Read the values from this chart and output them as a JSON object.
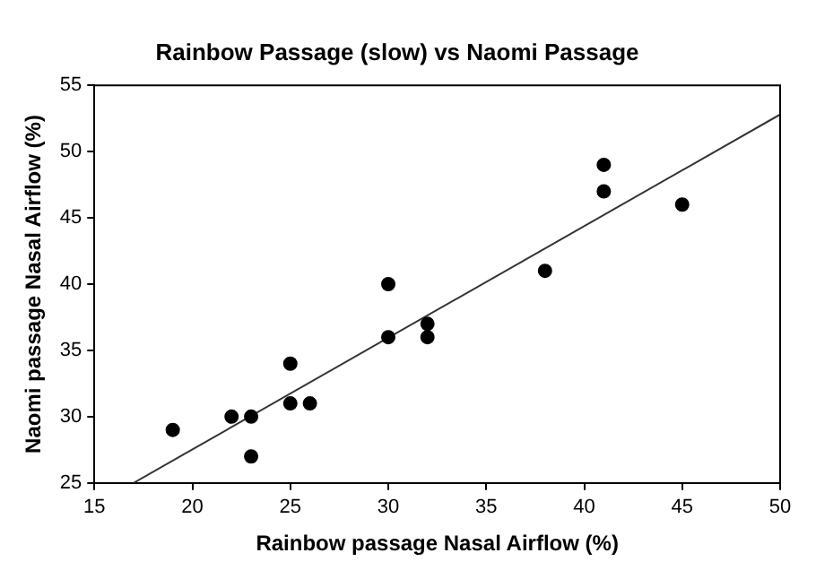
{
  "chart_data": {
    "type": "scatter",
    "title": "Rainbow Passage (slow) vs Naomi Passage",
    "xlabel": "Rainbow passage Nasal Airflow (%)",
    "ylabel": "Naomi passage Nasal Airflow (%)",
    "xlim": [
      15,
      50
    ],
    "xticks": [
      15,
      20,
      25,
      30,
      35,
      40,
      45,
      50
    ],
    "ylim": [
      25,
      55
    ],
    "yticks": [
      25,
      30,
      35,
      40,
      45,
      50,
      55
    ],
    "grid": false,
    "legend": false,
    "marker": "circle",
    "series": [
      {
        "type": "scatter",
        "color": "#000000",
        "x": [
          19,
          22,
          23,
          23,
          25,
          25,
          26,
          30,
          30,
          32,
          32,
          38,
          41,
          41,
          45
        ],
        "values": [
          29,
          30,
          30,
          27,
          31,
          34,
          31,
          40,
          36,
          37,
          36,
          41,
          49,
          47,
          46
        ]
      },
      {
        "type": "line",
        "color": "#333333",
        "marker": "none",
        "x": [
          17,
          50
        ],
        "values": [
          25,
          52.8
        ]
      }
    ]
  }
}
